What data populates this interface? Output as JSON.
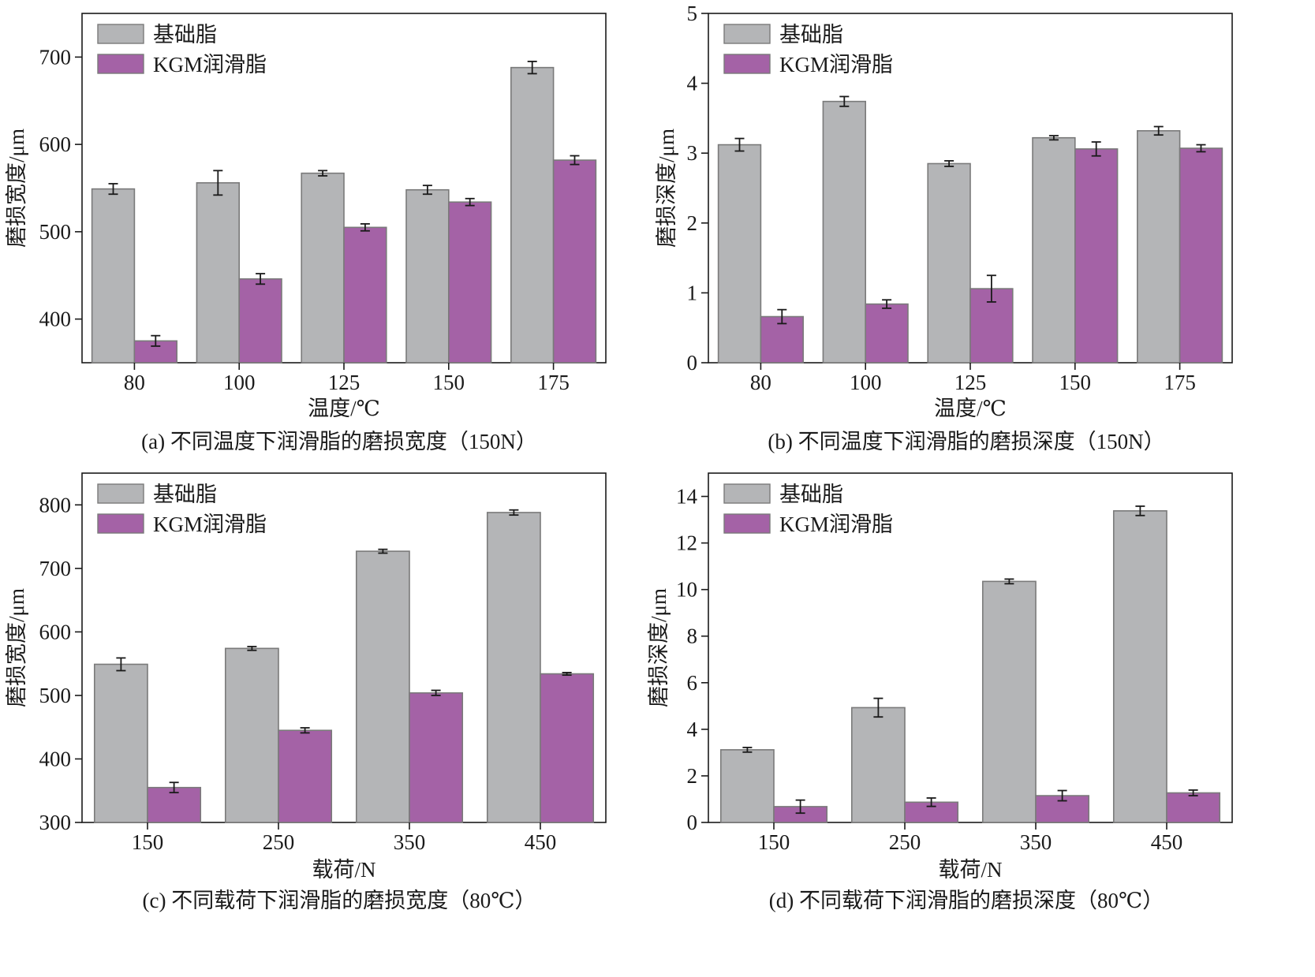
{
  "colors": {
    "base_grease": "#b4b5b7",
    "kgm_grease": "#a462a6",
    "edge": "#7a7a7a",
    "axis": "#1a1a1a"
  },
  "chart_data": [
    {
      "type": "bar",
      "ylabel": "磨损宽度/μm",
      "xlabel": "温度/℃",
      "caption": "(a) 不同温度下润滑脂的磨损宽度（150N）",
      "categories": [
        "80",
        "100",
        "125",
        "150",
        "175"
      ],
      "ylim": [
        350,
        750
      ],
      "yticks": [
        400,
        500,
        600,
        700
      ],
      "legend_position": "top-left",
      "series": [
        {
          "name": "基础脂",
          "values": [
            549,
            556,
            567,
            548,
            688
          ],
          "errors": [
            6,
            14,
            3,
            5,
            7
          ]
        },
        {
          "name": "KGM润滑脂",
          "values": [
            375,
            446,
            505,
            534,
            582
          ],
          "errors": [
            6,
            6,
            4,
            4,
            5
          ]
        }
      ]
    },
    {
      "type": "bar",
      "ylabel": "磨损深度/μm",
      "xlabel": "温度/℃",
      "caption": "(b) 不同温度下润滑脂的磨损深度（150N）",
      "categories": [
        "80",
        "100",
        "125",
        "150",
        "175"
      ],
      "ylim": [
        0,
        5
      ],
      "yticks": [
        0,
        1,
        2,
        3,
        4,
        5
      ],
      "legend_position": "top-left",
      "series": [
        {
          "name": "基础脂",
          "values": [
            3.12,
            3.74,
            2.85,
            3.22,
            3.32
          ],
          "errors": [
            0.09,
            0.07,
            0.04,
            0.03,
            0.06
          ]
        },
        {
          "name": "KGM润滑脂",
          "values": [
            0.66,
            0.84,
            1.06,
            3.06,
            3.07
          ],
          "errors": [
            0.1,
            0.06,
            0.19,
            0.1,
            0.05
          ]
        }
      ]
    },
    {
      "type": "bar",
      "ylabel": "磨损宽度/μm",
      "xlabel": "载荷/N",
      "caption": "(c) 不同载荷下润滑脂的磨损宽度（80℃）",
      "categories": [
        "150",
        "250",
        "350",
        "450"
      ],
      "ylim": [
        300,
        850
      ],
      "yticks": [
        300,
        400,
        500,
        600,
        700,
        800
      ],
      "legend_position": "top-left",
      "series": [
        {
          "name": "基础脂",
          "values": [
            549,
            574,
            727,
            788
          ],
          "errors": [
            10,
            3,
            3,
            4
          ]
        },
        {
          "name": "KGM润滑脂",
          "values": [
            355,
            445,
            504,
            534
          ],
          "errors": [
            8,
            4,
            4,
            2
          ]
        }
      ]
    },
    {
      "type": "bar",
      "ylabel": "磨损深度/μm",
      "xlabel": "载荷/N",
      "caption": "(d) 不同载荷下润滑脂的磨损深度（80℃）",
      "categories": [
        "150",
        "250",
        "350",
        "450"
      ],
      "ylim": [
        0,
        15
      ],
      "yticks": [
        0,
        2,
        4,
        6,
        8,
        10,
        12,
        14
      ],
      "legend_position": "top-left",
      "series": [
        {
          "name": "基础脂",
          "values": [
            3.12,
            4.93,
            10.35,
            13.38
          ],
          "errors": [
            0.1,
            0.4,
            0.1,
            0.2
          ]
        },
        {
          "name": "KGM润滑脂",
          "values": [
            0.68,
            0.87,
            1.15,
            1.27
          ],
          "errors": [
            0.28,
            0.18,
            0.22,
            0.12
          ]
        }
      ]
    }
  ]
}
